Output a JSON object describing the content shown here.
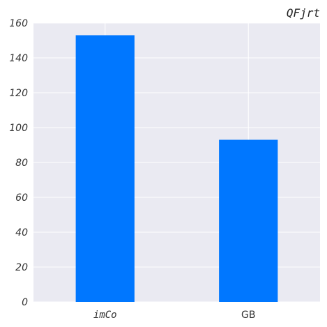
{
  "chart_data": {
    "type": "bar",
    "title": "QFjrt",
    "xlabel": "",
    "ylabel": "",
    "categories": [
      "imCo",
      "GB"
    ],
    "values": [
      153,
      93
    ],
    "ylim": [
      0,
      160
    ],
    "yticks": [
      0,
      20,
      40,
      60,
      80,
      100,
      120,
      140,
      160
    ],
    "grid": true,
    "legend": "none",
    "colors": {
      "bar": "#0077ff",
      "plot_background": "#eaeaf2",
      "grid": "#ffffff"
    }
  }
}
